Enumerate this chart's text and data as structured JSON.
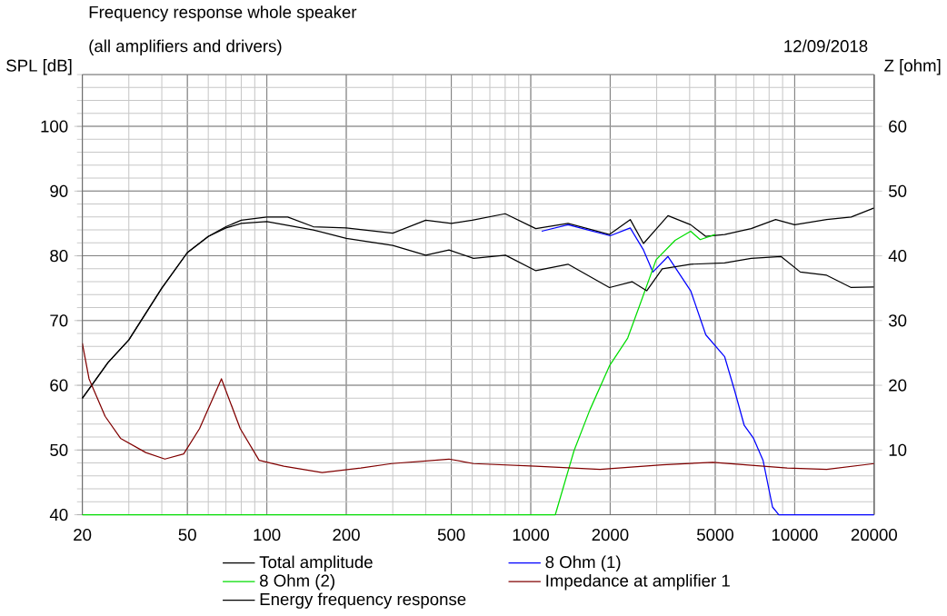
{
  "chart_data": {
    "type": "line",
    "title": "Frequency response whole speaker",
    "subtitle": "(all amplifiers and drivers)",
    "ylabel": "SPL [dB]",
    "y2label": "Z [ohm]",
    "annotations": [
      "12/09/2018"
    ],
    "log": "x",
    "grid": true,
    "legend": "bottom",
    "xlim": [
      20,
      20000
    ],
    "xticks": [
      20,
      50,
      100,
      200,
      500,
      1000,
      2000,
      5000,
      10000,
      20000
    ],
    "ylim": [
      40,
      108
    ],
    "yticks": [
      40,
      50,
      60,
      70,
      80,
      90,
      100
    ],
    "y2lim": [
      0,
      68
    ],
    "y2ticks": [
      10,
      20,
      30,
      40,
      50,
      60
    ],
    "series": [
      {
        "name": "Total amplitude",
        "color": "#000000",
        "x": [
          20,
          25,
          30,
          40,
          50,
          60,
          70,
          80,
          100,
          120,
          150,
          200,
          300,
          400,
          500,
          600,
          800,
          1045,
          1384,
          1987,
          2382,
          2674,
          3311,
          4036,
          4605,
          5430,
          6840,
          8470,
          10000,
          13220,
          16370,
          20000
        ],
        "values": [
          58,
          63.5,
          67,
          75,
          80.5,
          83,
          84.5,
          85.5,
          86,
          86,
          84.5,
          84.3,
          83.5,
          85.5,
          85,
          85.5,
          86.5,
          84.2,
          85,
          83.3,
          85.6,
          81.9,
          86.2,
          84.8,
          83,
          83.3,
          84.2,
          85.6,
          84.8,
          85.6,
          86,
          87.4
        ]
      },
      {
        "name": "8 Ohm (1)",
        "color": "#0000ff",
        "x": [
          1100,
          1384,
          2000,
          2382,
          2674,
          2903,
          3311,
          4036,
          4605,
          5430,
          5930,
          6440,
          6985,
          7590,
          8240,
          8710,
          20000
        ],
        "values": [
          83.8,
          84.8,
          83.1,
          84.3,
          80.9,
          77.5,
          79.9,
          74.6,
          67.8,
          64.4,
          59.1,
          53.8,
          51.8,
          48.4,
          41.2,
          40,
          40
        ]
      },
      {
        "name": "8 Ohm (2)",
        "color": "#00dd00",
        "x": [
          20,
          1239,
          1459,
          1675,
          1987,
          2330,
          2600,
          2986,
          3524,
          4036,
          4385,
          5000
        ],
        "values": [
          40,
          40,
          49.9,
          56.2,
          63,
          67.3,
          72.6,
          79.4,
          82.4,
          83.8,
          82.5,
          83.3
        ]
      },
      {
        "name": "Impedance at amplifier 1",
        "color": "#800000",
        "axis": "y2",
        "x": [
          20,
          21.2,
          24.4,
          27.9,
          34.8,
          41.1,
          48.4,
          55.6,
          67.3,
          79.3,
          93.5,
          116,
          162,
          227,
          297,
          490,
          607,
          1045,
          1830,
          3150,
          4900,
          9370,
          13220,
          20000
        ],
        "values": [
          26.5,
          21,
          15.2,
          11.8,
          9.6,
          8.6,
          9.4,
          13.3,
          21,
          13.3,
          8.4,
          7.5,
          6.5,
          7.2,
          7.9,
          8.6,
          7.9,
          7.5,
          7,
          7.7,
          8.1,
          7.2,
          7,
          7.9
        ]
      },
      {
        "name": "Energy frequency response",
        "color": "#000000",
        "x": [
          20,
          25,
          30,
          40,
          50,
          60,
          70,
          80,
          100,
          150,
          200,
          300,
          400,
          490,
          607,
          802,
          1045,
          1384,
          1987,
          2420,
          2750,
          3150,
          4036,
          5430,
          6840,
          8870,
          10500,
          13220,
          16370,
          20000
        ],
        "values": [
          58,
          63.5,
          67,
          75,
          80.5,
          83,
          84.3,
          85,
          85.3,
          84,
          82.7,
          81.6,
          80.1,
          80.9,
          79.6,
          80.1,
          77.7,
          78.7,
          75.1,
          76,
          74.6,
          78,
          78.7,
          78.9,
          79.6,
          79.9,
          77.5,
          77,
          75.1,
          75.2
        ]
      }
    ]
  }
}
